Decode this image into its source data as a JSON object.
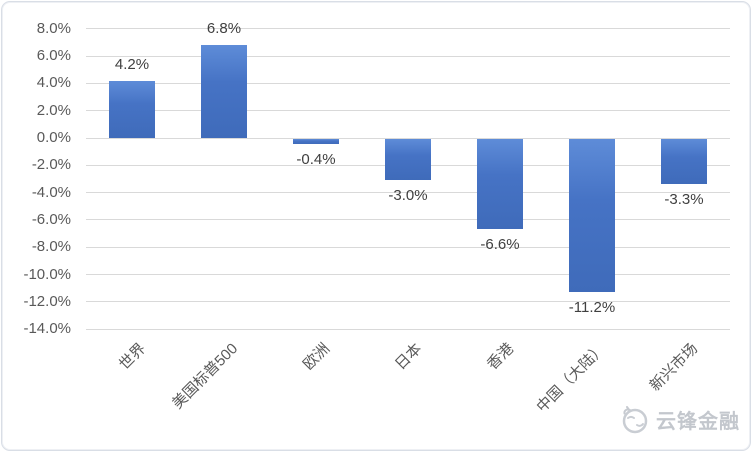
{
  "chart_data": {
    "type": "bar",
    "title": "",
    "xlabel": "",
    "ylabel": "",
    "categories": [
      "世界",
      "美国标普500",
      "欧洲",
      "日本",
      "香港",
      "中国（大陆）",
      "新兴市场"
    ],
    "values": [
      4.2,
      6.8,
      -0.4,
      -3.0,
      -6.6,
      -11.2,
      -3.3
    ],
    "data_labels": [
      "4.2%",
      "6.8%",
      "-0.4%",
      "-3.0%",
      "-6.6%",
      "-11.2%",
      "-3.3%"
    ],
    "y_ticks": [
      {
        "value": 8,
        "label": "8.0%"
      },
      {
        "value": 6,
        "label": "6.0%"
      },
      {
        "value": 4,
        "label": "4.0%"
      },
      {
        "value": 2,
        "label": "2.0%"
      },
      {
        "value": 0,
        "label": "0.0%"
      },
      {
        "value": -2,
        "label": "-2.0%"
      },
      {
        "value": -4,
        "label": "-4.0%"
      },
      {
        "value": -6,
        "label": "-6.0%"
      },
      {
        "value": -8,
        "label": "-8.0%"
      },
      {
        "value": -10,
        "label": "-10.0%"
      },
      {
        "value": -12,
        "label": "-12.0%"
      },
      {
        "value": -14,
        "label": "-14.0%"
      }
    ],
    "ylim": [
      -14,
      8
    ],
    "grid": true,
    "legend": "none",
    "colors": {
      "bar": "#4472C4",
      "bar_gradient_top": "#5E8CD8",
      "bar_gradient_bottom": "#3F6BBA",
      "gridline": "#D9D9D9",
      "tick_label": "#595959",
      "data_label": "#404040",
      "frame_border": "#D9DEE6"
    }
  },
  "watermark": {
    "text": "云锋金融",
    "icon": "yunfeng-doodle-face-icon",
    "color": "#C3C7CD"
  }
}
